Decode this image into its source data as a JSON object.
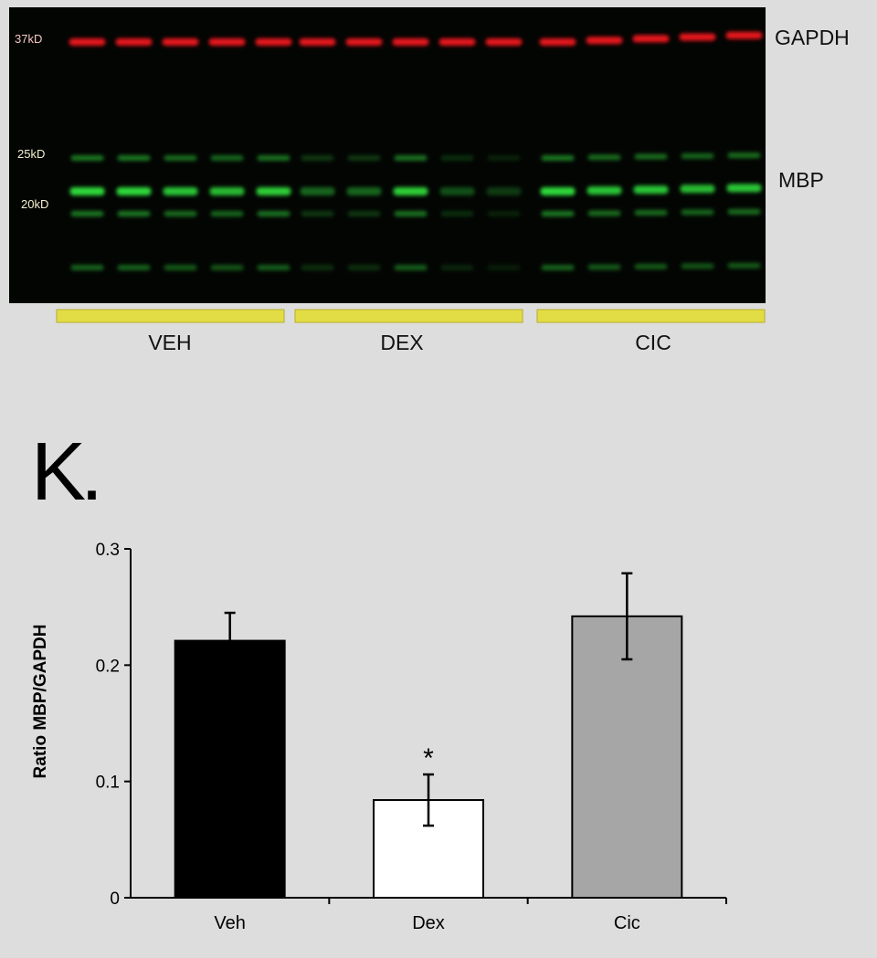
{
  "blot": {
    "markers": [
      "37kD",
      "25kD",
      "20kD"
    ],
    "band_labels": [
      "GAPDH",
      "MBP"
    ],
    "groups": [
      "VEH",
      "DEX",
      "CIC"
    ],
    "lanes_per_group": 5,
    "colors": {
      "background": "#030503",
      "gapdh_band": "#e8151c",
      "mbp_band": "#2fd93a",
      "group_bar": "#e3dd45"
    }
  },
  "panel_label": "K.",
  "chart_data": {
    "type": "bar",
    "categories": [
      "Veh",
      "Dex",
      "Cic"
    ],
    "values": [
      0.221,
      0.084,
      0.242
    ],
    "errors": [
      0.024,
      0.022,
      0.037
    ],
    "bar_colors": [
      "#000000",
      "#ffffff",
      "#a6a6a6"
    ],
    "annotations": [
      {
        "category": "Dex",
        "text": "*"
      }
    ],
    "ylabel": "Ratio MBP/GAPDH",
    "xlabel": "",
    "ylim": [
      0,
      0.3
    ],
    "yticks": [
      "0",
      "0.1",
      "0.2",
      "0.3"
    ],
    "grid": false,
    "legend": "none"
  }
}
